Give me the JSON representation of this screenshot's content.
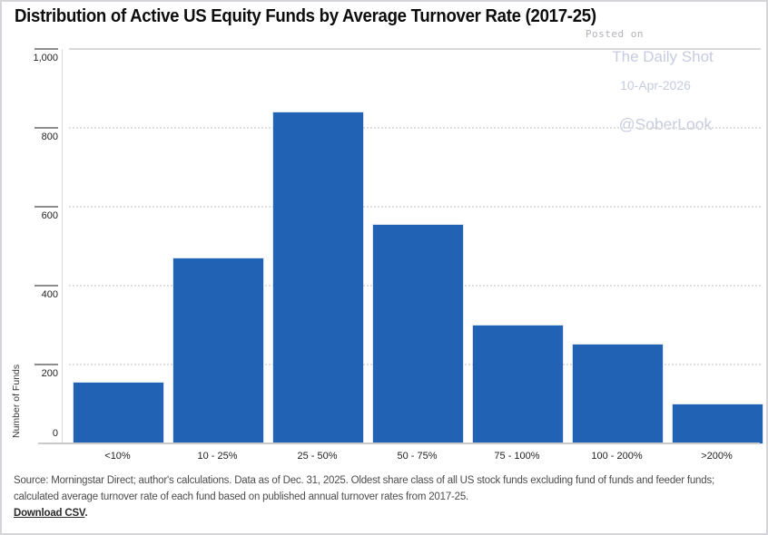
{
  "page": {
    "title": "Distribution of Active US Equity Funds by Average Turnover Rate (2017-25)"
  },
  "watermark": {
    "posted_on": "Posted on",
    "site_name": "The Daily Shot",
    "date": "10-Apr-2026",
    "handle": "@SoberLook",
    "color": "#c7cbdf"
  },
  "chart_data": {
    "type": "bar",
    "title": "Distribution of Active US Equity Funds by Average Turnover Rate (2017-25)",
    "categories": [
      "<10%",
      "10 - 25%",
      "25 - 50%",
      "50 - 75%",
      "75 - 100%",
      "100 - 200%",
      ">200%"
    ],
    "values": [
      155,
      470,
      840,
      555,
      300,
      250,
      100
    ],
    "xlabel": "",
    "ylabel": "Number of Funds",
    "ylim": [
      0,
      1000
    ],
    "yticks": [
      0,
      200,
      400,
      600,
      800,
      1000
    ],
    "ytick_labels": [
      "0",
      "200",
      "400",
      "600",
      "800",
      "1,000"
    ],
    "grid": "horizontal-dotted",
    "legend_position": "none",
    "bar_color": "#2262b5"
  },
  "footer": {
    "source_line1": "Source: Morningstar Direct; author's calculations. Data as of Dec. 31, 2025. Oldest share class of all US stock funds excluding fund of funds and feeder funds;",
    "source_line2": "calculated average turnover rate of each fund based on published annual turnover rates from 2017-25.",
    "download_link": "Download CSV",
    "download_suffix": "."
  }
}
